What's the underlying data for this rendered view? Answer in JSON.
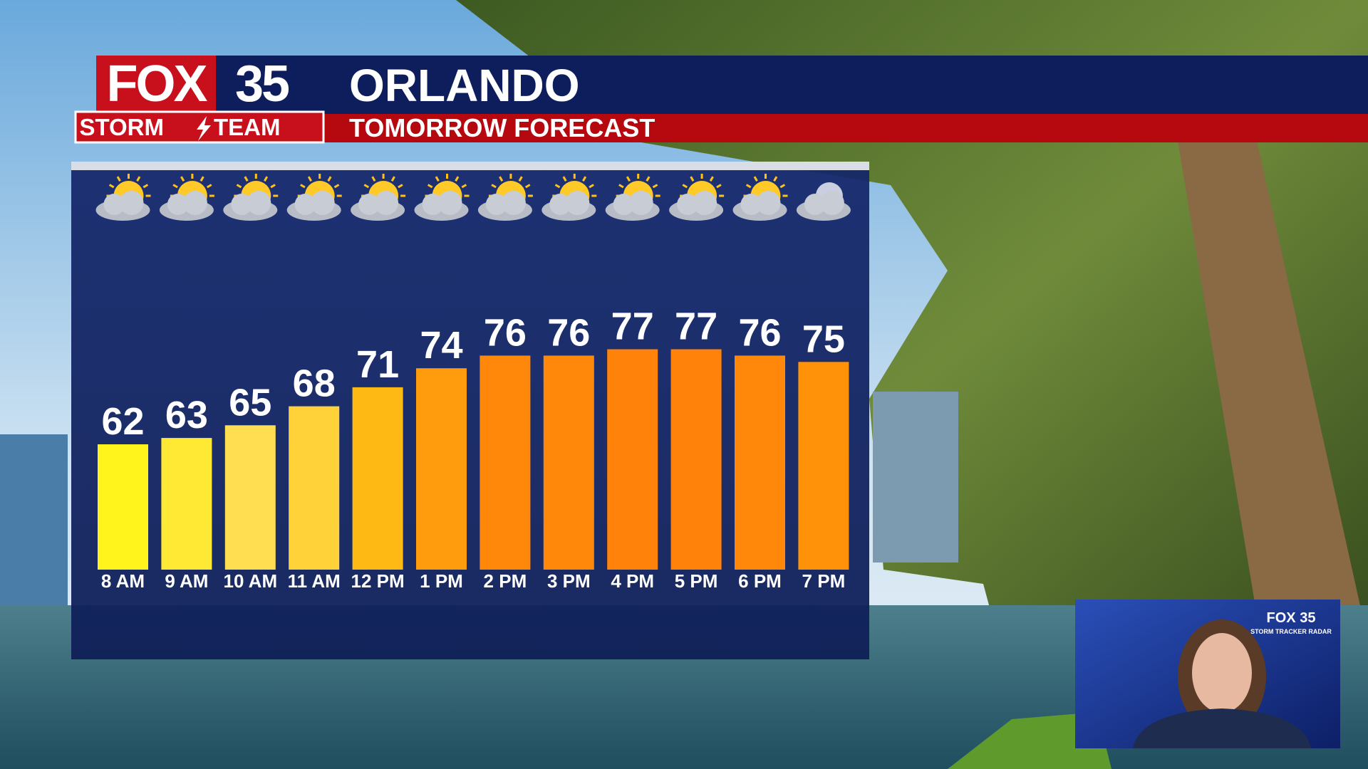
{
  "header": {
    "logo": {
      "brand": "FOX",
      "number": "35",
      "team": [
        "STORM",
        "TEAM"
      ]
    },
    "city": "ORLANDO",
    "subtitle": "TOMORROW FORECAST"
  },
  "chart_data": {
    "type": "bar",
    "categories": [
      "8 AM",
      "9 AM",
      "10 AM",
      "11 AM",
      "12 PM",
      "1 PM",
      "2 PM",
      "3 PM",
      "4 PM",
      "5 PM",
      "6 PM",
      "7 PM"
    ],
    "values": [
      62,
      63,
      65,
      68,
      71,
      74,
      76,
      76,
      77,
      77,
      76,
      75
    ],
    "colors": [
      "#fff51c",
      "#ffe935",
      "#ffde52",
      "#ffd23a",
      "#ffb915",
      "#ff9c0d",
      "#ff880a",
      "#ff870a",
      "#ff830a",
      "#ff830a",
      "#ff880a",
      "#ff9209"
    ]
  },
  "inset": {
    "logo": "FOX 35",
    "caption": "STORM TRACKER RADAR"
  }
}
